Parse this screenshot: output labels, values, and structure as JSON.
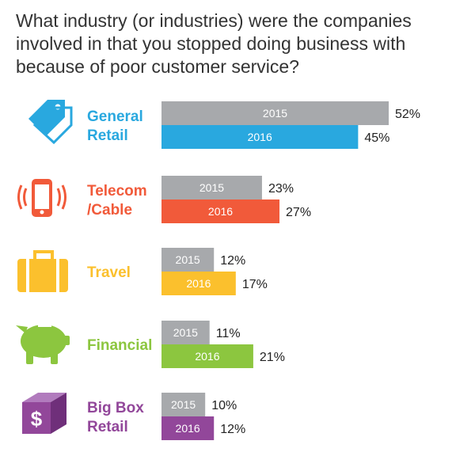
{
  "question": "What industry (or industries) were the companies involved in that you stopped doing business with because of poor customer service?",
  "chart_data": {
    "type": "bar",
    "orientation": "horizontal",
    "title": "What industry (or industries) were the companies involved in that you stopped doing business with because of poor customer service?",
    "categories": [
      {
        "lines": [
          "General",
          "Retail"
        ],
        "label": "General Retail",
        "icon": "price-tag-icon",
        "color": "#29a8df"
      },
      {
        "lines": [
          "Telecom",
          "/Cable"
        ],
        "label": "Telecom /Cable",
        "icon": "smartphone-icon",
        "color": "#f15a3a"
      },
      {
        "lines": [
          "Travel"
        ],
        "label": "Travel",
        "icon": "suitcase-icon",
        "color": "#fbc02d"
      },
      {
        "lines": [
          "Financial"
        ],
        "label": "Financial",
        "icon": "piggy-bank-icon",
        "color": "#8cc63f"
      },
      {
        "lines": [
          "Big Box",
          "Retail"
        ],
        "label": "Big Box Retail",
        "icon": "dollar-box-icon",
        "color": "#92479a"
      }
    ],
    "series": [
      {
        "name": "2015",
        "values": [
          52,
          23,
          12,
          11,
          10
        ],
        "color": "#a7a9ac"
      },
      {
        "name": "2016",
        "values": [
          45,
          27,
          17,
          21,
          12
        ],
        "color": "category"
      }
    ],
    "value_labels": {
      "2015": [
        "52%",
        "23%",
        "12%",
        "11%",
        "10%"
      ],
      "2016": [
        "45%",
        "27%",
        "17%",
        "21%",
        "12%"
      ]
    },
    "unit": "%",
    "xlim": [
      0,
      52
    ]
  }
}
